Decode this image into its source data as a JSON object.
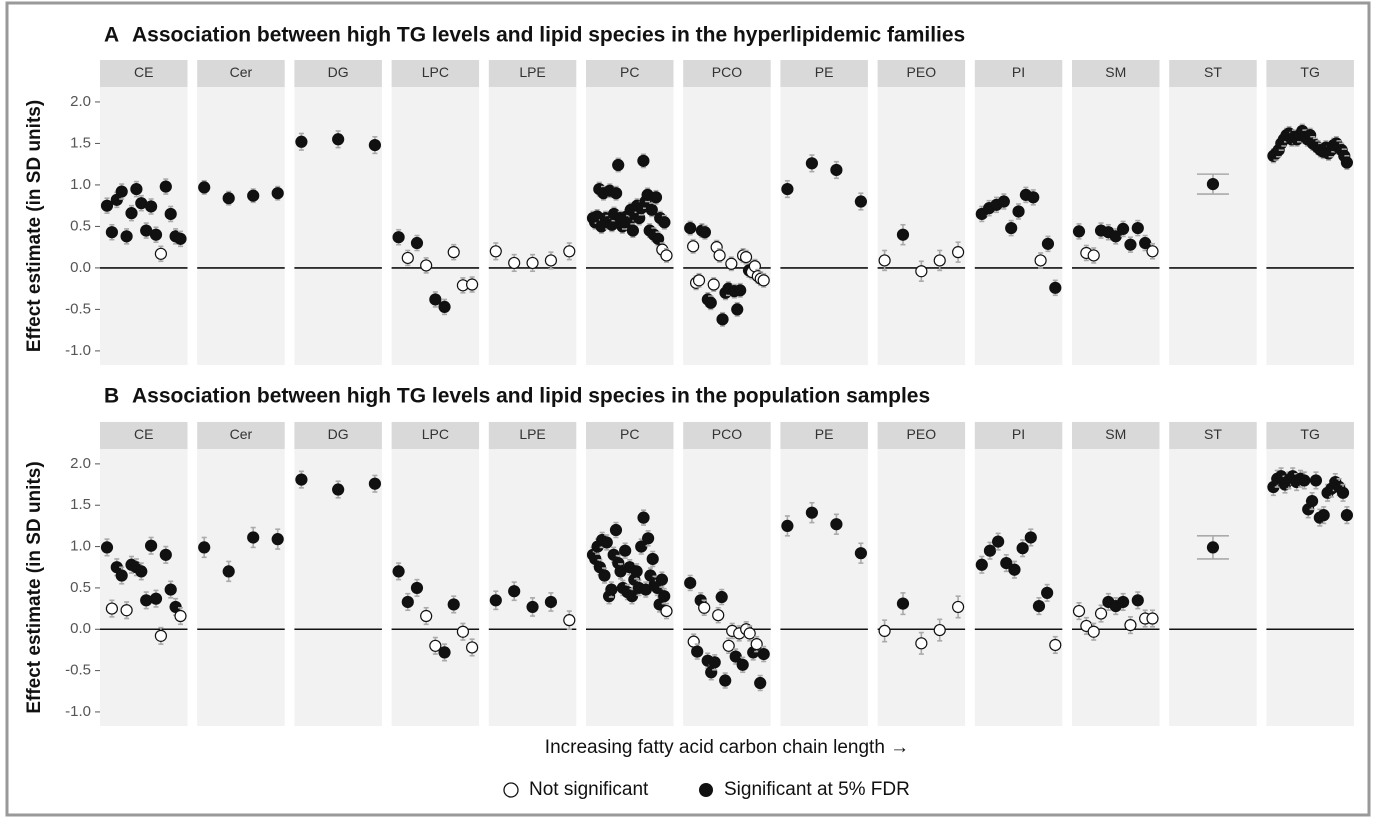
{
  "chart_data": [
    {
      "type": "errorbar",
      "panel_label": "A",
      "title": "Association between high TG levels and lipid species in the hyperlipidemic families",
      "y_label": "Effect estimate (in SD units)",
      "ylim": [
        -1.17,
        2.18
      ],
      "yticks": [
        {
          "value": -1,
          "label": "-1.0"
        },
        {
          "value": -0.5,
          "label": "-0.5"
        },
        {
          "value": 0,
          "label": "0.0"
        },
        {
          "value": 0.5,
          "label": "0.5"
        },
        {
          "value": 1,
          "label": "1.0"
        },
        {
          "value": 1.5,
          "label": "1.5"
        },
        {
          "value": 2,
          "label": "2.0"
        }
      ],
      "facets": [
        {
          "name": "CE",
          "error": 0.09,
          "values": [
            0.75,
            0.43,
            0.82,
            0.92,
            0.38,
            0.66,
            0.95,
            0.78,
            0.45,
            0.74,
            0.4,
            0.17,
            0.98,
            0.65,
            0.38,
            0.35
          ],
          "significant": [
            true,
            true,
            true,
            true,
            true,
            true,
            true,
            true,
            true,
            true,
            true,
            false,
            true,
            true,
            true,
            true
          ]
        },
        {
          "name": "Cer",
          "error": 0.08,
          "values": [
            0.97,
            0.84,
            0.87,
            0.9
          ],
          "significant": [
            true,
            true,
            true,
            true
          ]
        },
        {
          "name": "DG",
          "error": 0.1,
          "values": [
            1.52,
            1.55,
            1.48
          ],
          "significant": [
            true,
            true,
            true
          ]
        },
        {
          "name": "LPC",
          "error": 0.09,
          "values": [
            0.37,
            0.12,
            0.3,
            0.03,
            -0.38,
            -0.47,
            0.19,
            -0.21,
            -0.2
          ],
          "significant": [
            true,
            false,
            true,
            false,
            true,
            true,
            false,
            false,
            false
          ]
        },
        {
          "name": "LPE",
          "error": 0.1,
          "values": [
            0.2,
            0.06,
            0.06,
            0.09,
            0.2
          ],
          "significant": [
            false,
            false,
            false,
            false,
            false
          ]
        },
        {
          "name": "PC",
          "error": 0.08,
          "values": [
            0.6,
            0.55,
            0.62,
            0.95,
            0.5,
            0.9,
            0.6,
            0.55,
            0.93,
            0.52,
            0.65,
            0.9,
            1.24,
            0.6,
            0.5,
            0.55,
            0.62,
            0.55,
            0.7,
            0.45,
            0.65,
            0.75,
            0.6,
            0.72,
            1.29,
            0.8,
            0.88,
            0.45,
            0.7,
            0.4,
            0.85,
            0.35,
            0.6,
            0.22,
            0.55,
            0.15
          ],
          "significant": [
            true,
            true,
            true,
            true,
            true,
            true,
            true,
            true,
            true,
            true,
            true,
            true,
            true,
            true,
            true,
            true,
            true,
            true,
            true,
            true,
            true,
            true,
            true,
            true,
            true,
            true,
            true,
            true,
            true,
            true,
            true,
            true,
            true,
            false,
            true,
            false
          ]
        },
        {
          "name": "PCO",
          "error": 0.08,
          "values": [
            0.48,
            0.26,
            -0.18,
            -0.15,
            0.45,
            0.43,
            -0.38,
            -0.42,
            -0.2,
            0.25,
            0.15,
            -0.62,
            -0.3,
            -0.25,
            0.05,
            -0.28,
            -0.5,
            -0.27,
            0.15,
            0.13,
            -0.03,
            -0.05,
            0.02,
            -0.1,
            -0.13,
            -0.15
          ],
          "significant": [
            true,
            false,
            false,
            false,
            true,
            true,
            true,
            true,
            false,
            false,
            false,
            true,
            true,
            true,
            false,
            true,
            true,
            true,
            false,
            false,
            true,
            false,
            false,
            false,
            false,
            false
          ]
        },
        {
          "name": "PE",
          "error": 0.1,
          "values": [
            0.95,
            1.26,
            1.18,
            0.8
          ],
          "significant": [
            true,
            true,
            true,
            true
          ]
        },
        {
          "name": "PEO",
          "error": 0.12,
          "values": [
            0.09,
            0.4,
            -0.04,
            0.09,
            0.19
          ],
          "significant": [
            false,
            true,
            false,
            false,
            false
          ]
        },
        {
          "name": "PI",
          "error": 0.09,
          "values": [
            0.65,
            0.72,
            0.76,
            0.8,
            0.48,
            0.68,
            0.88,
            0.85,
            0.09,
            0.29,
            -0.24
          ],
          "significant": [
            true,
            true,
            true,
            true,
            true,
            true,
            true,
            true,
            false,
            true,
            true
          ]
        },
        {
          "name": "SM",
          "error": 0.09,
          "values": [
            0.44,
            0.18,
            0.15,
            0.45,
            0.43,
            0.38,
            0.47,
            0.28,
            0.48,
            0.3,
            0.2
          ],
          "significant": [
            true,
            false,
            false,
            true,
            true,
            true,
            true,
            true,
            true,
            true,
            false
          ]
        },
        {
          "name": "ST",
          "error": 0.12,
          "values": [
            1.01
          ],
          "significant": [
            true
          ]
        },
        {
          "name": "TG",
          "error": 0.08,
          "values": [
            1.35,
            1.38,
            1.42,
            1.5,
            1.55,
            1.6,
            1.62,
            1.55,
            1.58,
            1.55,
            1.6,
            1.65,
            1.58,
            1.55,
            1.6,
            1.5,
            1.48,
            1.45,
            1.42,
            1.4,
            1.45,
            1.38,
            1.42,
            1.48,
            1.5,
            1.45,
            1.42,
            1.35,
            1.27
          ],
          "significant": [
            true,
            true,
            true,
            true,
            true,
            true,
            true,
            true,
            true,
            true,
            true,
            true,
            true,
            true,
            true,
            true,
            true,
            true,
            true,
            true,
            true,
            true,
            true,
            true,
            true,
            true,
            true,
            true,
            true
          ]
        }
      ]
    },
    {
      "type": "errorbar",
      "panel_label": "B",
      "title": "Association between high TG levels and lipid species in the population samples",
      "y_label": "Effect estimate (in SD units)",
      "ylim": [
        -1.17,
        2.18
      ],
      "yticks": [
        {
          "value": -1,
          "label": "-1.0"
        },
        {
          "value": -0.5,
          "label": "-0.5"
        },
        {
          "value": 0,
          "label": "0.0"
        },
        {
          "value": 0.5,
          "label": "0.5"
        },
        {
          "value": 1,
          "label": "1.0"
        },
        {
          "value": 1.5,
          "label": "1.5"
        },
        {
          "value": 2,
          "label": "2.0"
        }
      ],
      "facets": [
        {
          "name": "CE",
          "error": 0.1,
          "values": [
            0.99,
            0.25,
            0.75,
            0.65,
            0.23,
            0.78,
            0.75,
            0.7,
            0.35,
            1.01,
            0.37,
            -0.08,
            0.9,
            0.48,
            0.27,
            0.16
          ],
          "significant": [
            true,
            false,
            true,
            true,
            false,
            true,
            true,
            true,
            true,
            true,
            true,
            false,
            true,
            true,
            true,
            false
          ]
        },
        {
          "name": "Cer",
          "error": 0.12,
          "values": [
            0.99,
            0.7,
            1.11,
            1.09
          ],
          "significant": [
            true,
            true,
            true,
            true
          ]
        },
        {
          "name": "DG",
          "error": 0.1,
          "values": [
            1.81,
            1.69,
            1.76
          ],
          "significant": [
            true,
            true,
            true
          ]
        },
        {
          "name": "LPC",
          "error": 0.1,
          "values": [
            0.7,
            0.33,
            0.5,
            0.16,
            -0.2,
            -0.28,
            0.3,
            -0.03,
            -0.22
          ],
          "significant": [
            true,
            true,
            true,
            false,
            false,
            true,
            true,
            false,
            false
          ]
        },
        {
          "name": "LPE",
          "error": 0.11,
          "values": [
            0.35,
            0.46,
            0.27,
            0.33,
            0.11
          ],
          "significant": [
            true,
            true,
            true,
            true,
            false
          ]
        },
        {
          "name": "PC",
          "error": 0.09,
          "values": [
            0.9,
            0.85,
            1.0,
            0.75,
            1.08,
            0.65,
            1.05,
            0.4,
            0.48,
            0.9,
            1.2,
            0.8,
            0.7,
            0.5,
            0.95,
            0.45,
            0.75,
            0.4,
            0.6,
            0.7,
            0.5,
            1.0,
            1.35,
            0.48,
            1.1,
            0.65,
            0.85,
            0.55,
            0.5,
            0.3,
            0.6,
            0.4,
            0.22
          ],
          "significant": [
            true,
            true,
            true,
            true,
            true,
            true,
            true,
            true,
            true,
            true,
            true,
            true,
            true,
            true,
            true,
            true,
            true,
            true,
            true,
            true,
            true,
            true,
            true,
            true,
            true,
            true,
            true,
            true,
            true,
            true,
            true,
            true,
            false
          ]
        },
        {
          "name": "PCO",
          "error": 0.09,
          "values": [
            0.56,
            -0.15,
            -0.27,
            0.35,
            0.26,
            -0.38,
            -0.52,
            -0.4,
            0.17,
            0.39,
            -0.62,
            -0.2,
            -0.02,
            -0.33,
            -0.05,
            -0.43,
            0.0,
            -0.05,
            -0.28,
            -0.18,
            -0.65,
            -0.3
          ],
          "significant": [
            true,
            false,
            true,
            true,
            false,
            true,
            true,
            true,
            false,
            true,
            true,
            false,
            false,
            true,
            false,
            true,
            false,
            false,
            true,
            false,
            true,
            true
          ]
        },
        {
          "name": "PE",
          "error": 0.12,
          "values": [
            1.25,
            1.41,
            1.27,
            0.92
          ],
          "significant": [
            true,
            true,
            true,
            true
          ]
        },
        {
          "name": "PEO",
          "error": 0.13,
          "values": [
            -0.02,
            0.31,
            -0.17,
            -0.01,
            0.27
          ],
          "significant": [
            false,
            true,
            false,
            false,
            false
          ]
        },
        {
          "name": "PI",
          "error": 0.1,
          "values": [
            0.78,
            0.95,
            1.06,
            0.8,
            0.72,
            0.98,
            1.11,
            0.28,
            0.44,
            -0.19
          ],
          "significant": [
            true,
            true,
            true,
            true,
            true,
            true,
            true,
            true,
            true,
            false
          ]
        },
        {
          "name": "SM",
          "error": 0.1,
          "values": [
            0.22,
            0.04,
            -0.03,
            0.19,
            0.33,
            0.28,
            0.33,
            0.05,
            0.35,
            0.13,
            0.13
          ],
          "significant": [
            false,
            false,
            false,
            false,
            true,
            true,
            true,
            false,
            true,
            false,
            false
          ]
        },
        {
          "name": "ST",
          "error": 0.14,
          "values": [
            0.99
          ],
          "significant": [
            true
          ]
        },
        {
          "name": "TG",
          "error": 0.1,
          "values": [
            1.72,
            1.82,
            1.85,
            1.75,
            1.8,
            1.85,
            1.78,
            1.82,
            1.8,
            1.45,
            1.55,
            1.8,
            1.35,
            1.38,
            1.65,
            1.7,
            1.78,
            1.72,
            1.65,
            1.38
          ],
          "significant": [
            true,
            true,
            true,
            true,
            true,
            true,
            true,
            true,
            true,
            true,
            true,
            true,
            true,
            true,
            true,
            true,
            true,
            true,
            true,
            true
          ]
        }
      ]
    }
  ],
  "x_label": "Increasing fatty acid carbon chain length →",
  "legend": [
    "Not significant",
    "Significant at 5% FDR"
  ]
}
